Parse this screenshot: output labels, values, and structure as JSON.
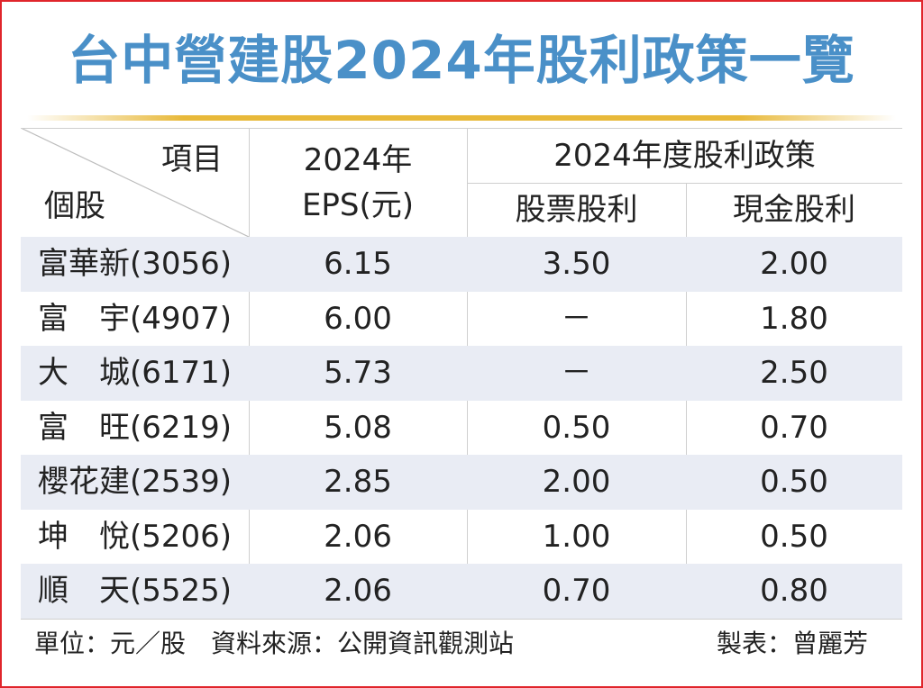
{
  "title": "台中營建股2024年股利政策一覽",
  "header": {
    "item_label": "項目",
    "stock_label": "個股",
    "eps_line1": "2024年",
    "eps_line2": "EPS(元)",
    "policy_label": "2024年度股利政策",
    "stock_dividend_label": "股票股利",
    "cash_dividend_label": "現金股利"
  },
  "chart_data": {
    "type": "table",
    "title": "台中營建股2024年股利政策一覽",
    "columns": [
      "個股",
      "2024年EPS(元)",
      "股票股利",
      "現金股利"
    ],
    "rows": [
      {
        "stock": "富華新(3056)",
        "eps": "6.15",
        "stock_dividend": "3.50",
        "cash_dividend": "2.00"
      },
      {
        "stock": "富　宇(4907)",
        "eps": "6.00",
        "stock_dividend": "－",
        "cash_dividend": "1.80"
      },
      {
        "stock": "大　城(6171)",
        "eps": "5.73",
        "stock_dividend": "－",
        "cash_dividend": "2.50"
      },
      {
        "stock": "富　旺(6219)",
        "eps": "5.08",
        "stock_dividend": "0.50",
        "cash_dividend": "0.70"
      },
      {
        "stock": "櫻花建(2539)",
        "eps": "2.85",
        "stock_dividend": "2.00",
        "cash_dividend": "0.50"
      },
      {
        "stock": "坤　悅(5206)",
        "eps": "2.06",
        "stock_dividend": "1.00",
        "cash_dividend": "0.50"
      },
      {
        "stock": "順　天(5525)",
        "eps": "2.06",
        "stock_dividend": "0.70",
        "cash_dividend": "0.80"
      }
    ]
  },
  "footer": {
    "unit_source": "單位：元／股　資料來源：公開資訊觀測站",
    "credit": "製表：曾麗芳"
  },
  "colors": {
    "title": "#4a90c8",
    "border": "#e0252b",
    "accent_line": "#e8b93a",
    "row_shade": "#e9ecf4"
  }
}
